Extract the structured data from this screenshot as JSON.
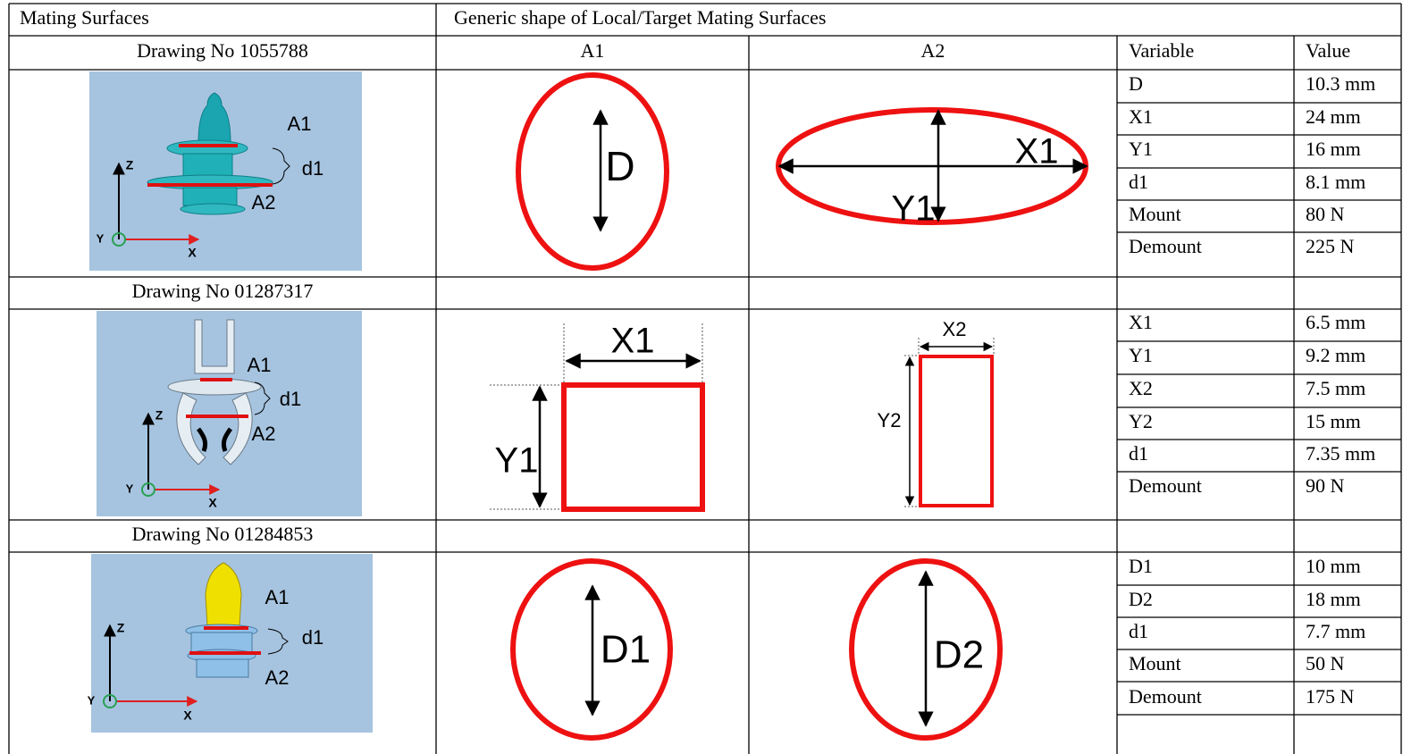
{
  "header": {
    "left": "Mating Surfaces",
    "right": "Generic shape of Local/Target Mating Surfaces"
  },
  "columns": {
    "a1": "A1",
    "a2": "A2",
    "variable": "Variable",
    "value": "Value"
  },
  "parts": [
    {
      "drawing": "Drawing No 1055788",
      "image_labels": [
        "A1",
        "d1",
        "A2",
        "Z",
        "Y",
        "X"
      ],
      "a1_labels": [
        "D"
      ],
      "a2_labels": [
        "X1",
        "Y1"
      ],
      "variables": [
        {
          "name": "D",
          "value": "10.3 mm"
        },
        {
          "name": "X1",
          "value": "24 mm"
        },
        {
          "name": "Y1",
          "value": "16 mm"
        },
        {
          "name": "d1",
          "value": "8.1 mm"
        },
        {
          "name": "Mount",
          "value": "80 N"
        },
        {
          "name": "Demount",
          "value": "225 N"
        }
      ]
    },
    {
      "drawing": "Drawing No  01287317",
      "image_labels": [
        "A1",
        "d1",
        "A2",
        "Z",
        "Y",
        "X"
      ],
      "a1_labels": [
        "X1",
        "Y1"
      ],
      "a2_labels": [
        "X2",
        "Y2"
      ],
      "variables": [
        {
          "name": "X1",
          "value": "6.5 mm"
        },
        {
          "name": "Y1",
          "value": "9.2 mm"
        },
        {
          "name": "X2",
          "value": "7.5 mm"
        },
        {
          "name": "Y2",
          "value": "15 mm"
        },
        {
          "name": "d1",
          "value": "7.35 mm"
        },
        {
          "name": "Demount",
          "value": "90 N"
        }
      ]
    },
    {
      "drawing": "Drawing No 01284853",
      "image_labels": [
        "A1",
        "d1",
        "A2",
        "Z",
        "Y",
        "X"
      ],
      "a1_labels": [
        "D1"
      ],
      "a2_labels": [
        "D2"
      ],
      "variables": [
        {
          "name": "D1",
          "value": "10 mm"
        },
        {
          "name": "D2",
          "value": "18 mm"
        },
        {
          "name": "d1",
          "value": "7.7 mm"
        },
        {
          "name": "Mount",
          "value": "50 N"
        },
        {
          "name": "Demount",
          "value": "175 N"
        }
      ]
    }
  ]
}
